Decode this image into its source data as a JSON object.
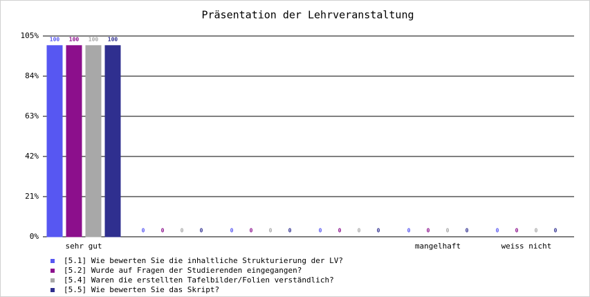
{
  "chart_data": {
    "type": "bar",
    "title": "Präsentation der Lehrveranstaltung",
    "categories": [
      "sehr gut",
      null,
      null,
      null,
      "mangelhaft",
      "weiss nicht"
    ],
    "series": [
      {
        "name": "[5.1] Wie bewerten Sie die inhaltliche Strukturierung der LV?",
        "color": "#5757f2",
        "values": [
          100,
          0,
          0,
          0,
          0,
          0
        ]
      },
      {
        "name": "[5.2] Wurde auf Fragen der Studierenden eingegangen?",
        "color": "#8c0f8c",
        "values": [
          100,
          0,
          0,
          0,
          0,
          0
        ]
      },
      {
        "name": "[5.4] Waren die erstellten Tafelbilder/Folien verständlich?",
        "color": "#a8a8a8",
        "values": [
          100,
          0,
          0,
          0,
          0,
          0
        ]
      },
      {
        "name": "[5.5] Wie bewerten Sie das Skript?",
        "color": "#2f2f8f",
        "values": [
          100,
          0,
          0,
          0,
          0,
          0
        ]
      }
    ],
    "ylim": [
      0,
      105
    ],
    "yticks": [
      {
        "value": 0,
        "label": "0%"
      },
      {
        "value": 21,
        "label": "21%"
      },
      {
        "value": 42,
        "label": "42%"
      },
      {
        "value": 63,
        "label": "63%"
      },
      {
        "value": 84,
        "label": "84%"
      },
      {
        "value": 105,
        "label": "105%"
      }
    ],
    "grid": true
  }
}
